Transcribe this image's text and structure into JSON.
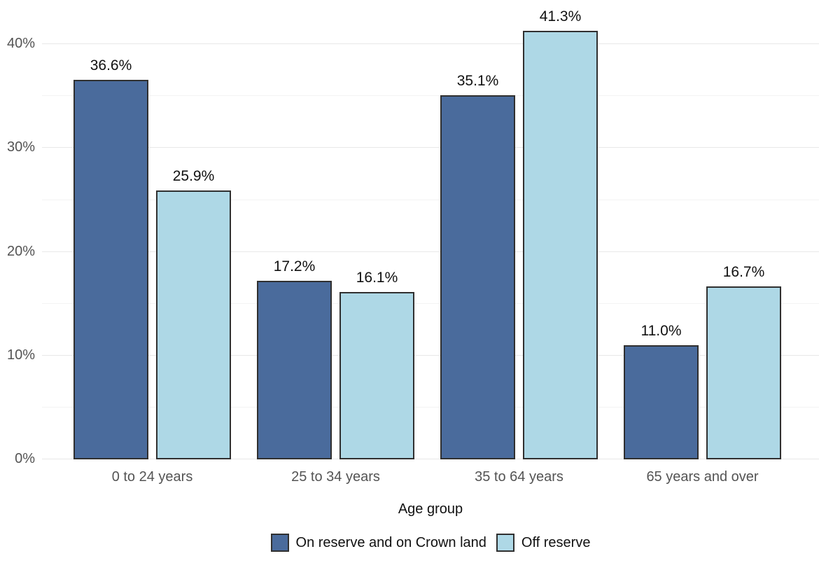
{
  "chart_data": {
    "type": "bar",
    "title": "",
    "categories": [
      "0 to 24 years",
      "25 to 34 years",
      "35 to 64 years",
      "65 years and over"
    ],
    "series": [
      {
        "name": "On reserve and on Crown land",
        "color": "#4a6b9c",
        "values": [
          36.6,
          17.2,
          35.1,
          11.0
        ],
        "value_labels": [
          "36.6%",
          "17.2%",
          "35.1%",
          "11.0%"
        ]
      },
      {
        "name": "Off reserve",
        "color": "#aed8e6",
        "values": [
          25.9,
          16.1,
          41.3,
          16.7
        ],
        "value_labels": [
          "25.9%",
          "16.1%",
          "41.3%",
          "16.7%"
        ]
      }
    ],
    "xlabel": "Age group",
    "ylabel": "",
    "y_axis": {
      "tick_values": [
        0,
        10,
        20,
        30,
        40
      ],
      "tick_labels": [
        "0%",
        "10%",
        "20%",
        "30%",
        "40%"
      ],
      "minor_tick_values": [
        5,
        15,
        25,
        35
      ],
      "min": 0,
      "max": 44.2
    },
    "grid": {
      "orientation": "horizontal",
      "major_color": "#e8e8e8",
      "minor_color": "#f3f3f3"
    },
    "bar_border_color": "#303030",
    "axis_text_color": "#545454",
    "data_label_color": "#111111",
    "legend_position": "bottom"
  }
}
